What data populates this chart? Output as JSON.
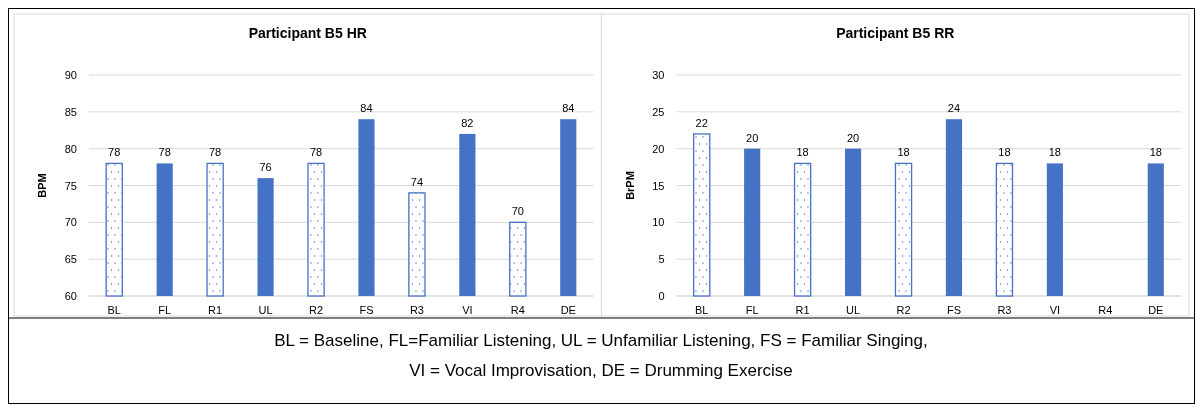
{
  "chart_data": [
    {
      "type": "bar",
      "title": "Participant B5 HR",
      "ylabel": "BPM",
      "categories": [
        "BL",
        "FL",
        "R1",
        "UL",
        "R2",
        "FS",
        "R3",
        "VI",
        "R4",
        "DE"
      ],
      "values": [
        78,
        78,
        78,
        76,
        78,
        84,
        74,
        82,
        70,
        84
      ],
      "colors": [
        "#ffffff",
        "#4472c4",
        "#ffffff",
        "#4472c4",
        "#ffffff",
        "#4472c4",
        "#ffffff",
        "#4472c4",
        "#ffffff",
        "#4472c4"
      ],
      "ylim": [
        60,
        90
      ],
      "yticks": [
        60,
        65,
        70,
        75,
        80,
        85,
        90
      ],
      "grid": "y",
      "data_labels": true
    },
    {
      "type": "bar",
      "title": "Participant B5 RR",
      "ylabel": "BrPM",
      "categories": [
        "BL",
        "FL",
        "R1",
        "UL",
        "R2",
        "FS",
        "R3",
        "VI",
        "R4",
        "DE"
      ],
      "values": [
        22,
        20,
        18,
        20,
        18,
        24,
        18,
        18,
        null,
        18
      ],
      "colors": [
        "#ffffff",
        "#4472c4",
        "#ffffff",
        "#4472c4",
        "#ffffff",
        "#4472c4",
        "#ffffff",
        "#4472c4",
        null,
        "#4472c4"
      ],
      "ylim": [
        0,
        30
      ],
      "yticks": [
        0,
        5,
        10,
        15,
        20,
        25,
        30
      ],
      "grid": "y",
      "data_labels": true
    },
    {
      "type": "other",
      "annotations": [
        "BL = Baseline, FL=Familiar Listening, UL = Unfamiliar Listening, FS = Familiar Singing,",
        "VI = Vocal Improvisation, DE = Drumming Exercise"
      ]
    }
  ]
}
